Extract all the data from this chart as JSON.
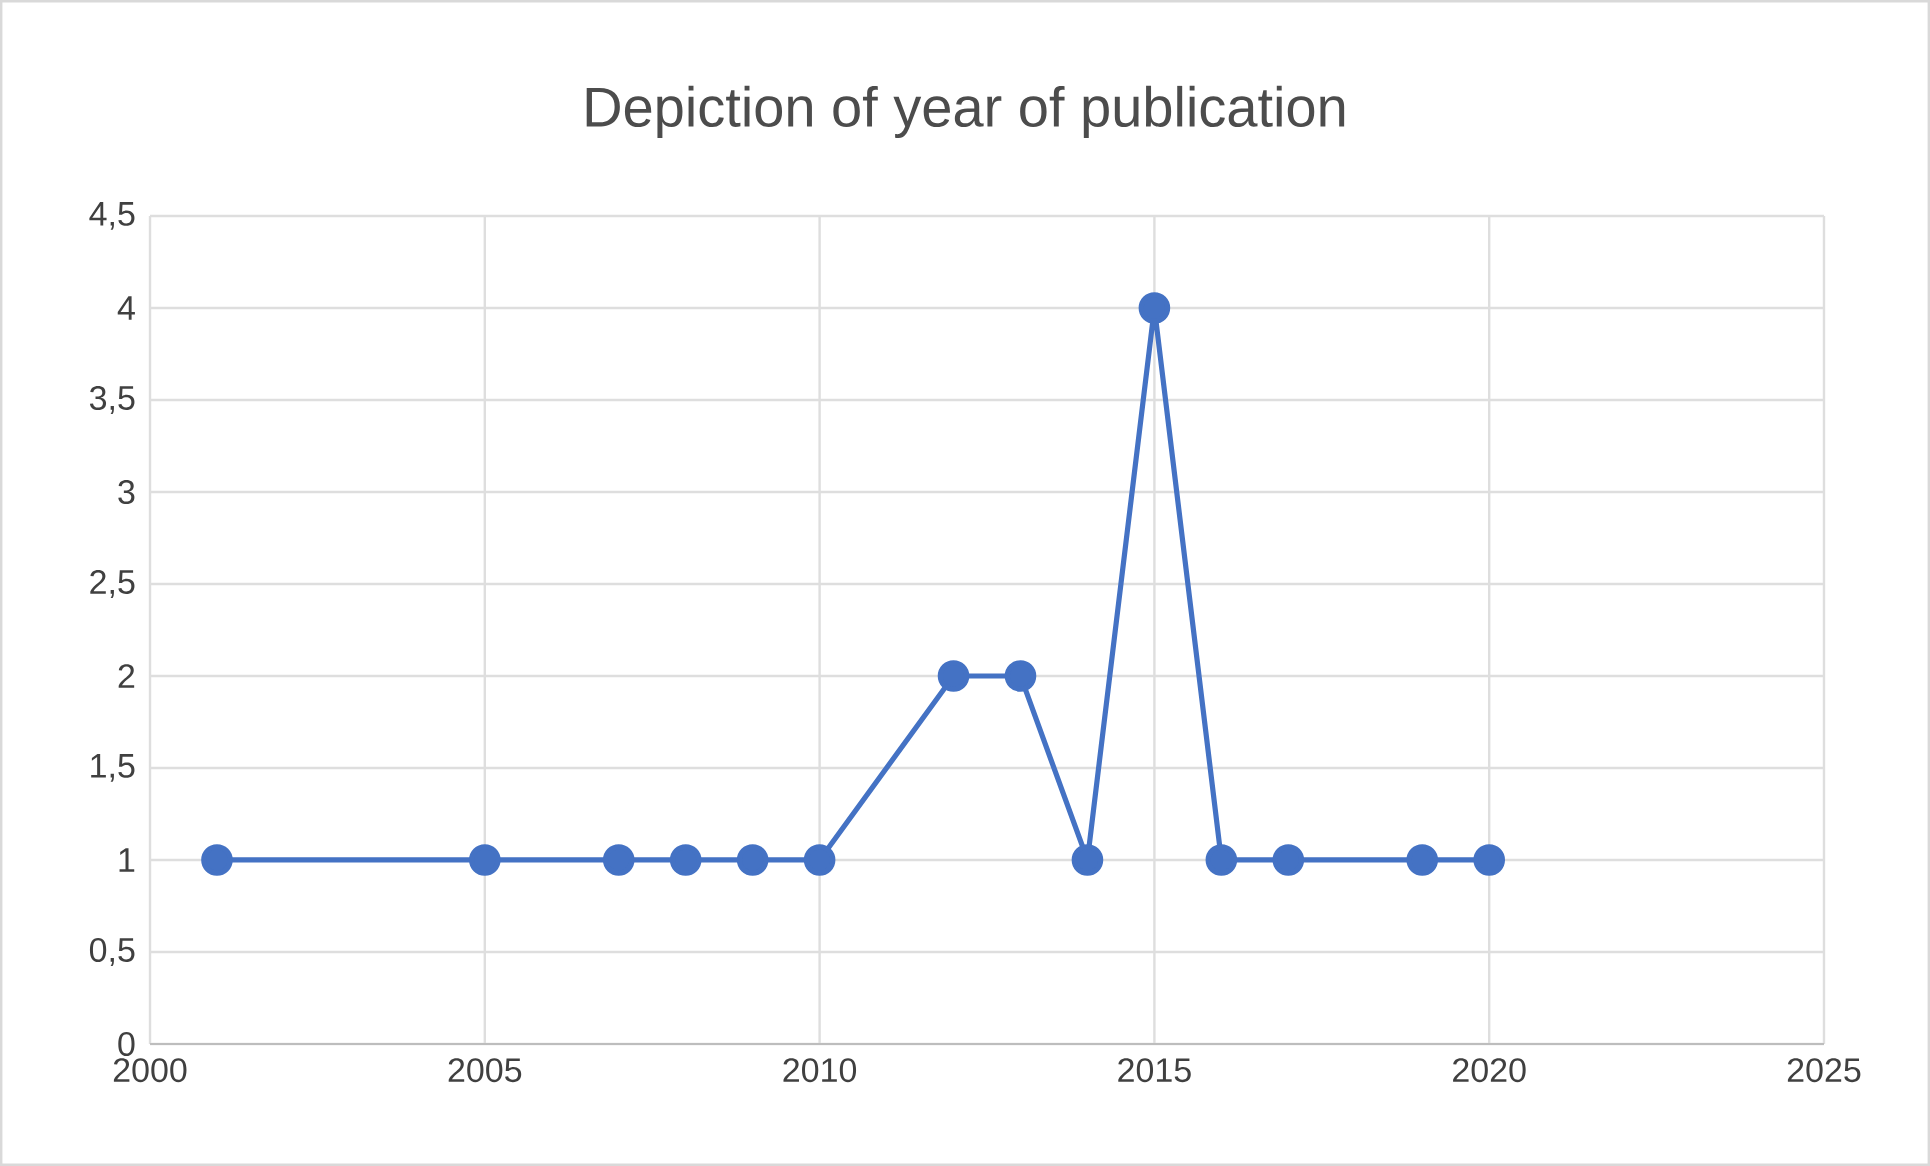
{
  "chart_data": {
    "type": "line",
    "title": "Depiction of year of publication",
    "x": [
      2001,
      2005,
      2007,
      2008,
      2009,
      2010,
      2012,
      2013,
      2014,
      2015,
      2016,
      2017,
      2019,
      2020
    ],
    "series": [
      {
        "color": "#4472c4",
        "values": [
          1,
          1,
          1,
          1,
          1,
          1,
          2,
          2,
          1,
          4,
          1,
          1,
          1,
          1
        ]
      }
    ],
    "xlim": [
      2000,
      2025
    ],
    "xticks": [
      2000,
      2005,
      2010,
      2015,
      2020,
      2025
    ],
    "ylim": [
      0,
      4.5
    ],
    "yticks": [
      0,
      {
        "value": 0.5,
        "label": "0,5"
      },
      1,
      {
        "value": 1.5,
        "label": "1,5"
      },
      2,
      {
        "value": 2.5,
        "label": "2,5"
      },
      3,
      {
        "value": 3.5,
        "label": "3,5"
      },
      4,
      {
        "value": 4.5,
        "label": "4,5"
      }
    ],
    "grid": true,
    "marker": "circle",
    "line_style": "solid"
  }
}
